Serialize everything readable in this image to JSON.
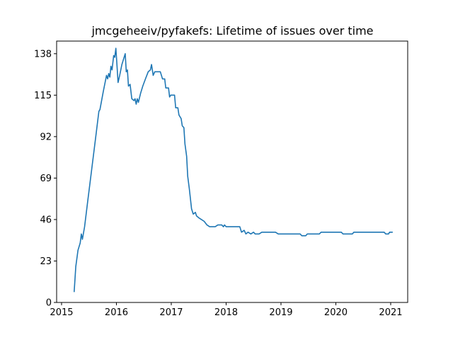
{
  "chart_data": {
    "type": "line",
    "title": "jmcgeheeiv/pyfakefs: Lifetime of issues over time",
    "xlabel": "",
    "ylabel": "",
    "xlim": [
      2014.91,
      2021.31
    ],
    "ylim": [
      0,
      145
    ],
    "x_ticks": [
      2015,
      2016,
      2017,
      2018,
      2019,
      2020,
      2021
    ],
    "x_tick_labels": [
      "2015",
      "2016",
      "2017",
      "2018",
      "2019",
      "2020",
      "2021"
    ],
    "y_ticks": [
      0,
      23,
      46,
      69,
      92,
      115,
      138
    ],
    "y_tick_labels": [
      "0",
      "23",
      "46",
      "69",
      "92",
      "115",
      "138"
    ],
    "grid": false,
    "legend": "none",
    "series": [
      {
        "color": "#1f77b4",
        "points": [
          [
            2015.23,
            6
          ],
          [
            2015.26,
            20
          ],
          [
            2015.3,
            29
          ],
          [
            2015.34,
            33
          ],
          [
            2015.36,
            38
          ],
          [
            2015.38,
            35
          ],
          [
            2015.42,
            42
          ],
          [
            2015.48,
            57
          ],
          [
            2015.55,
            74
          ],
          [
            2015.62,
            91
          ],
          [
            2015.68,
            106
          ],
          [
            2015.7,
            107
          ],
          [
            2015.76,
            117
          ],
          [
            2015.82,
            126
          ],
          [
            2015.84,
            124
          ],
          [
            2015.86,
            127
          ],
          [
            2015.88,
            125
          ],
          [
            2015.9,
            131
          ],
          [
            2015.92,
            129
          ],
          [
            2015.95,
            137
          ],
          [
            2015.97,
            136
          ],
          [
            2015.99,
            141
          ],
          [
            2016.01,
            132
          ],
          [
            2016.03,
            122
          ],
          [
            2016.06,
            126
          ],
          [
            2016.1,
            132
          ],
          [
            2016.16,
            138
          ],
          [
            2016.18,
            128
          ],
          [
            2016.2,
            129
          ],
          [
            2016.22,
            120
          ],
          [
            2016.25,
            121
          ],
          [
            2016.28,
            113
          ],
          [
            2016.32,
            112
          ],
          [
            2016.34,
            113
          ],
          [
            2016.36,
            110
          ],
          [
            2016.38,
            113
          ],
          [
            2016.4,
            111
          ],
          [
            2016.44,
            116
          ],
          [
            2016.48,
            120
          ],
          [
            2016.53,
            124
          ],
          [
            2016.58,
            128
          ],
          [
            2016.62,
            129
          ],
          [
            2016.64,
            132
          ],
          [
            2016.67,
            126
          ],
          [
            2016.7,
            128
          ],
          [
            2016.8,
            128
          ],
          [
            2016.84,
            124
          ],
          [
            2016.88,
            124
          ],
          [
            2016.9,
            119
          ],
          [
            2016.95,
            119
          ],
          [
            2016.97,
            114
          ],
          [
            2016.99,
            115
          ],
          [
            2017.06,
            115
          ],
          [
            2017.08,
            108
          ],
          [
            2017.12,
            108
          ],
          [
            2017.14,
            104
          ],
          [
            2017.18,
            102
          ],
          [
            2017.2,
            98
          ],
          [
            2017.23,
            97
          ],
          [
            2017.25,
            88
          ],
          [
            2017.28,
            81
          ],
          [
            2017.3,
            70
          ],
          [
            2017.33,
            63
          ],
          [
            2017.37,
            52
          ],
          [
            2017.4,
            49
          ],
          [
            2017.44,
            50
          ],
          [
            2017.46,
            48
          ],
          [
            2017.5,
            47
          ],
          [
            2017.55,
            46
          ],
          [
            2017.6,
            45
          ],
          [
            2017.65,
            43
          ],
          [
            2017.7,
            42
          ],
          [
            2017.8,
            42
          ],
          [
            2017.85,
            43
          ],
          [
            2017.92,
            43
          ],
          [
            2017.95,
            42
          ],
          [
            2017.97,
            43
          ],
          [
            2018.0,
            42
          ],
          [
            2018.1,
            42
          ],
          [
            2018.25,
            42
          ],
          [
            2018.28,
            39
          ],
          [
            2018.33,
            40
          ],
          [
            2018.36,
            38
          ],
          [
            2018.4,
            39
          ],
          [
            2018.45,
            38
          ],
          [
            2018.5,
            39
          ],
          [
            2018.53,
            38
          ],
          [
            2018.6,
            38
          ],
          [
            2018.65,
            39
          ],
          [
            2018.9,
            39
          ],
          [
            2018.95,
            38
          ],
          [
            2019.35,
            38
          ],
          [
            2019.38,
            37
          ],
          [
            2019.45,
            37
          ],
          [
            2019.48,
            38
          ],
          [
            2019.7,
            38
          ],
          [
            2019.73,
            39
          ],
          [
            2020.1,
            39
          ],
          [
            2020.13,
            38
          ],
          [
            2020.3,
            38
          ],
          [
            2020.33,
            39
          ],
          [
            2020.88,
            39
          ],
          [
            2020.91,
            38
          ],
          [
            2020.96,
            38
          ],
          [
            2020.98,
            39
          ],
          [
            2021.03,
            39
          ]
        ]
      }
    ]
  }
}
